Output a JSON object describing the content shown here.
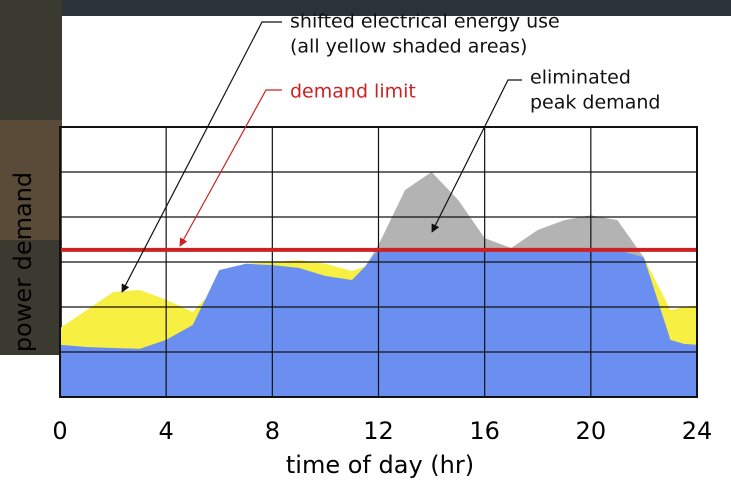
{
  "chart_data": {
    "type": "area",
    "annotations": [
      "shifted electrical energy use",
      "(all yellow shaded areas)",
      "demand limit",
      "eliminated",
      "peak demand"
    ],
    "xlabel": "time of day (hr)",
    "ylabel": "power demand",
    "x": [
      0,
      1,
      2,
      3,
      4,
      5,
      5.5,
      6,
      7,
      8,
      9,
      10,
      11,
      11.5,
      12,
      13,
      14,
      15,
      16,
      17,
      18,
      19,
      20,
      21,
      22,
      23,
      23.5,
      24
    ],
    "series": [
      {
        "color": "#b3b3b3",
        "values": [
          null,
          null,
          null,
          null,
          null,
          null,
          null,
          null,
          null,
          null,
          null,
          null,
          null,
          2.9,
          3.38,
          4.6,
          5.0,
          4.38,
          3.53,
          3.31,
          3.71,
          3.93,
          4.04,
          3.93,
          3.1,
          null,
          null,
          null
        ]
      },
      {
        "color": "#f7ef42",
        "values": [
          1.53,
          1.93,
          2.33,
          2.38,
          2.16,
          1.89,
          2.2,
          null,
          2.96,
          3.0,
          3.04,
          2.96,
          2.8,
          2.9,
          null,
          null,
          null,
          null,
          null,
          null,
          null,
          null,
          null,
          null,
          3.1,
          1.93,
          2.0,
          2.04
        ]
      },
      {
        "color": "#6a8ff0",
        "values": [
          1.16,
          1.11,
          1.09,
          1.07,
          1.27,
          1.6,
          2.2,
          2.82,
          2.96,
          2.93,
          2.87,
          2.69,
          2.6,
          2.9,
          3.27,
          3.27,
          3.27,
          3.27,
          3.27,
          3.27,
          3.27,
          3.27,
          3.27,
          3.27,
          3.1,
          1.27,
          1.18,
          1.16
        ]
      }
    ],
    "demand_limit": {
      "value": 3.27,
      "color": "#cc2222"
    },
    "xlim": [
      0,
      24
    ],
    "xticks": [
      0,
      4,
      8,
      12,
      16,
      20,
      24
    ],
    "ylim": [
      0,
      6
    ],
    "yticks": [
      0,
      1,
      2,
      3,
      4,
      5,
      6
    ],
    "ytick_labels": false,
    "grid": true
  }
}
